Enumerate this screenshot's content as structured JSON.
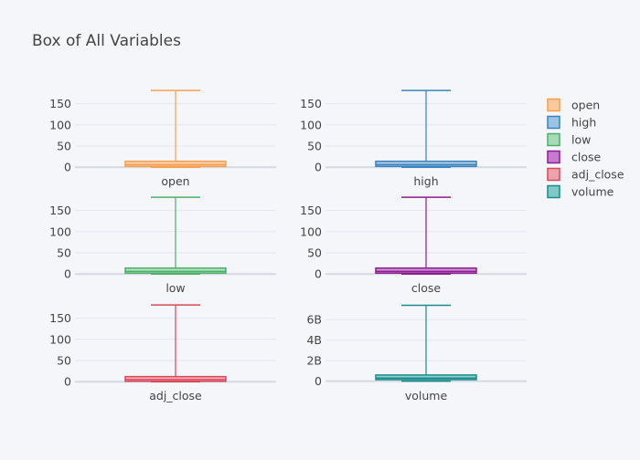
{
  "chart_data": {
    "type": "box",
    "title": "Box of All Variables",
    "legend_position": "top-right",
    "grid": true,
    "series": [
      {
        "name": "open",
        "category_label": "open",
        "color": "#f5a04f",
        "fill": "#fbc99b",
        "stats": {
          "min": 0,
          "q1": 2,
          "median": 6,
          "q3": 14,
          "max": 181
        },
        "yticks": [
          0,
          50,
          100,
          150
        ],
        "ytick_labels": [
          "0",
          "50",
          "100",
          "150"
        ],
        "ylim": [
          -6,
          190
        ]
      },
      {
        "name": "high",
        "category_label": "high",
        "color": "#3b83bd",
        "fill": "#9cc2e4",
        "stats": {
          "min": 0,
          "q1": 2,
          "median": 6,
          "q3": 14,
          "max": 181
        },
        "yticks": [
          0,
          50,
          100,
          150
        ],
        "ytick_labels": [
          "0",
          "50",
          "100",
          "150"
        ],
        "ylim": [
          -6,
          190
        ]
      },
      {
        "name": "low",
        "category_label": "low",
        "color": "#4caf6a",
        "fill": "#a6dcb5",
        "stats": {
          "min": 0,
          "q1": 2,
          "median": 6,
          "q3": 14,
          "max": 181
        },
        "yticks": [
          0,
          50,
          100,
          150
        ],
        "ytick_labels": [
          "0",
          "50",
          "100",
          "150"
        ],
        "ylim": [
          -6,
          190
        ]
      },
      {
        "name": "close",
        "category_label": "close",
        "color": "#8b1f8f",
        "fill": "#c77ad0",
        "stats": {
          "min": 0,
          "q1": 2,
          "median": 6,
          "q3": 14,
          "max": 181
        },
        "yticks": [
          0,
          50,
          100,
          150
        ],
        "ytick_labels": [
          "0",
          "50",
          "100",
          "150"
        ],
        "ylim": [
          -6,
          190
        ]
      },
      {
        "name": "adj_close",
        "category_label": "adj_close",
        "color": "#d7485b",
        "fill": "#f1a3ad",
        "stats": {
          "min": 0,
          "q1": 1,
          "median": 5,
          "q3": 12,
          "max": 181
        },
        "yticks": [
          0,
          50,
          100,
          150
        ],
        "ytick_labels": [
          "0",
          "50",
          "100",
          "150"
        ],
        "ylim": [
          -6,
          190
        ]
      },
      {
        "name": "volume",
        "category_label": "volume",
        "color": "#1a8a8a",
        "fill": "#7ec9c6",
        "stats": {
          "min": 0,
          "q1": 150000000,
          "median": 300000000,
          "q3": 600000000,
          "max": 7400000000
        },
        "yticks": [
          0,
          2000000000,
          4000000000,
          6000000000
        ],
        "ytick_labels": [
          "0",
          "2B",
          "4B",
          "6B"
        ],
        "ylim": [
          -300000000,
          7800000000
        ]
      }
    ]
  }
}
